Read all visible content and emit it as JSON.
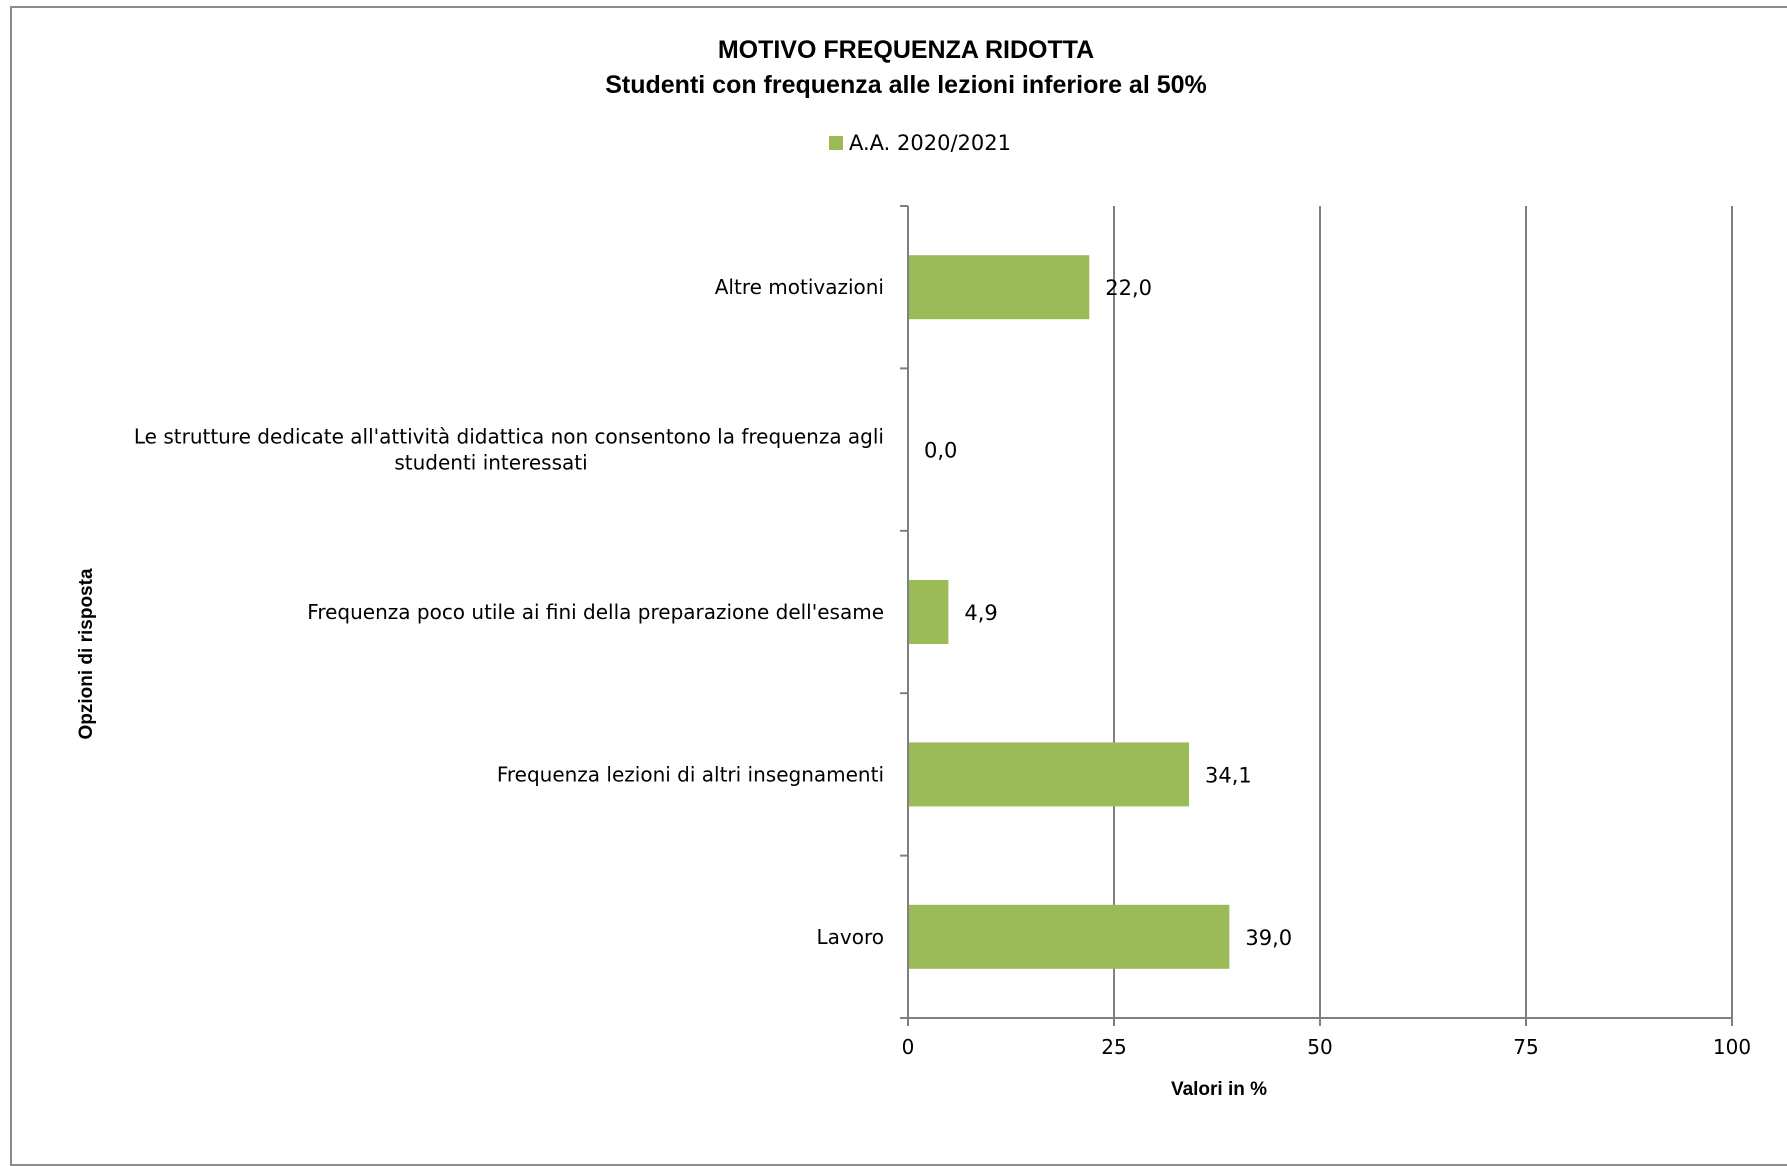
{
  "chart_data": {
    "type": "bar",
    "orientation": "horizontal",
    "title": "MOTIVO FREQUENZA RIDOTTA",
    "subtitle": "Studenti con frequenza alle lezioni  inferiore  al 50%",
    "xlabel": "Valori in %",
    "ylabel": "Opzioni di risposta",
    "xlim": [
      0,
      100
    ],
    "xticks": [
      "0",
      "25",
      "50",
      "75",
      "100"
    ],
    "grid": "vertical",
    "legend_position": "top",
    "categories": [
      "Altre motivazioni",
      "Le strutture dedicate all'attività didattica non consentono la frequenza agli studenti interessati",
      "Frequenza poco utile ai fini della preparazione dell'esame",
      "Frequenza lezioni di altri insegnamenti",
      "Lavoro"
    ],
    "series": [
      {
        "name": "A.A. 2020/2021",
        "color": "#9bbb59",
        "values": [
          22.0,
          0.0,
          4.9,
          34.1,
          39.0
        ],
        "value_labels": [
          "22,0",
          "0,0",
          "4,9",
          "34,1",
          "39,0"
        ]
      }
    ]
  }
}
